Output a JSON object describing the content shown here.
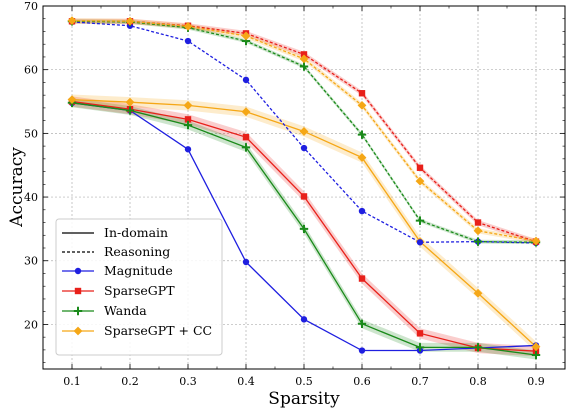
{
  "chart_data": {
    "type": "line",
    "xlabel": "Sparsity",
    "ylabel": "Accuracy",
    "x": [
      0.1,
      0.2,
      0.3,
      0.4,
      0.5,
      0.6,
      0.7,
      0.8,
      0.9
    ],
    "x_tick_labels": [
      "0.1",
      "0.2",
      "0.3",
      "0.4",
      "0.5",
      "0.6",
      "0.7",
      "0.8",
      "0.9"
    ],
    "xlim": [
      0.05,
      0.95
    ],
    "ylim": [
      13,
      70
    ],
    "y_ticks": [
      20,
      30,
      40,
      50,
      60,
      70
    ],
    "y_tick_labels": [
      "20",
      "30",
      "40",
      "50",
      "60",
      "70"
    ],
    "grid": true,
    "legend_position": "lower-left",
    "legend": {
      "line_styles": [
        {
          "label": "In-domain",
          "style": "solid"
        },
        {
          "label": "Reasoning",
          "style": "dashed"
        }
      ],
      "methods": [
        {
          "label": "Magnitude",
          "color": "#1f1fe0",
          "marker": "circle"
        },
        {
          "label": "SparseGPT",
          "color": "#e8201a",
          "marker": "square"
        },
        {
          "label": "Wanda",
          "color": "#1a8a1a",
          "marker": "plus"
        },
        {
          "label": "SparseGPT + CC",
          "color": "#f5a716",
          "marker": "diamond"
        }
      ]
    },
    "series": [
      {
        "method": "Magnitude",
        "style": "solid",
        "color": "#1f1fe0",
        "marker": "circle",
        "values": [
          54.8,
          53.6,
          47.5,
          29.8,
          20.8,
          15.9,
          15.9,
          16.3,
          16.7
        ],
        "band": 0
      },
      {
        "method": "SparseGPT",
        "style": "solid",
        "color": "#e8201a",
        "marker": "square",
        "values": [
          55.0,
          53.8,
          52.2,
          49.4,
          40.1,
          27.2,
          18.6,
          16.3,
          15.8
        ],
        "band": 0.8
      },
      {
        "method": "Wanda",
        "style": "solid",
        "color": "#1a8a1a",
        "marker": "plus",
        "values": [
          54.8,
          53.6,
          51.3,
          47.8,
          35.0,
          20.1,
          16.4,
          16.4,
          15.2
        ],
        "band": 0.7
      },
      {
        "method": "SparseGPT + CC",
        "style": "solid",
        "color": "#f5a716",
        "marker": "diamond",
        "values": [
          55.3,
          54.9,
          54.4,
          53.4,
          50.3,
          46.2,
          33.0,
          24.9,
          16.5
        ],
        "band": 0.8
      },
      {
        "method": "Magnitude",
        "style": "dashed",
        "color": "#1f1fe0",
        "marker": "circle",
        "values": [
          67.5,
          66.9,
          64.5,
          58.4,
          47.7,
          37.8,
          32.9,
          33.0,
          32.8
        ],
        "band": 0
      },
      {
        "method": "SparseGPT",
        "style": "dashed",
        "color": "#e8201a",
        "marker": "square",
        "values": [
          67.6,
          67.6,
          66.9,
          65.7,
          62.4,
          56.3,
          44.6,
          36.0,
          33.0
        ],
        "band": 0.4
      },
      {
        "method": "Wanda",
        "style": "dashed",
        "color": "#1a8a1a",
        "marker": "plus",
        "values": [
          67.6,
          67.5,
          66.6,
          64.5,
          60.5,
          49.8,
          36.3,
          33.0,
          32.9
        ],
        "band": 0.3
      },
      {
        "method": "SparseGPT + CC",
        "style": "dashed",
        "color": "#f5a716",
        "marker": "diamond",
        "values": [
          67.7,
          67.6,
          66.8,
          65.3,
          61.7,
          54.4,
          42.5,
          34.7,
          33.1
        ],
        "band": 0.4
      }
    ]
  }
}
